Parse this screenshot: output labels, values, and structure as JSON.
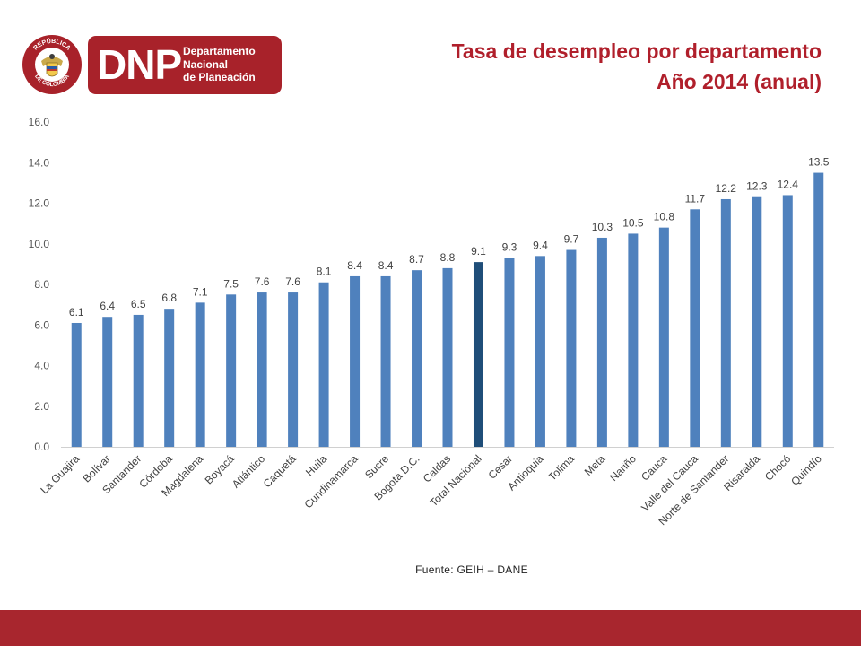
{
  "logo": {
    "seal_text_top": "REPÚBLICA",
    "seal_text_bottom": "DE COLOMBIA",
    "acronym": "DNP",
    "name_lines": [
      "Departamento",
      "Nacional",
      "de Planeación"
    ]
  },
  "colors": {
    "brand_red": "#a8222a",
    "title_red": "#b01f2b",
    "bar": "#4f81bd",
    "bar_highlight": "#1f4e79",
    "footer": "#a8262e"
  },
  "title_lines": [
    "Tasa de desempleo por departamento",
    "Año 2014 (anual)"
  ],
  "source": "Fuente: GEIH – DANE",
  "chart_data": {
    "type": "bar",
    "title": "Tasa de desempleo por departamento Año 2014 (anual)",
    "xlabel": "",
    "ylabel": "",
    "ylim": [
      0,
      16
    ],
    "yticks": [
      "0.0",
      "2.0",
      "4.0",
      "6.0",
      "8.0",
      "10.0",
      "12.0",
      "14.0",
      "16.0"
    ],
    "grid": false,
    "legend": "none",
    "highlight_category": "Total Nacional",
    "categories": [
      "La Guajira",
      "Bolívar",
      "Santander",
      "Córdoba",
      "Magdalena",
      "Boyacá",
      "Atlántico",
      "Caquetá",
      "Huila",
      "Cundinamarca",
      "Sucre",
      "Bogotá D.C.",
      "Caldas",
      "Total Nacional",
      "Cesar",
      "Antioquia",
      "Tolima",
      "Meta",
      "Nariño",
      "Cauca",
      "Valle del Cauca",
      "Norte de Santander",
      "Risaralda",
      "Chocó",
      "Quindío"
    ],
    "values": [
      6.1,
      6.4,
      6.5,
      6.8,
      7.1,
      7.5,
      7.6,
      7.6,
      8.1,
      8.4,
      8.4,
      8.7,
      8.8,
      9.1,
      9.3,
      9.4,
      9.7,
      10.3,
      10.5,
      10.8,
      11.7,
      12.2,
      12.3,
      12.4,
      13.5
    ],
    "data_labels": [
      "6.1",
      "6.4",
      "6.5",
      "6.8",
      "7.1",
      "7.5",
      "7.6",
      "7.6",
      "8.1",
      "8.4",
      "8.4",
      "8.7",
      "8.8",
      "9.1",
      "9.3",
      "9.4",
      "9.7",
      "10.3",
      "10.5",
      "10.8",
      "11.7",
      "12.2",
      "12.3",
      "12.4",
      "13.5"
    ]
  }
}
